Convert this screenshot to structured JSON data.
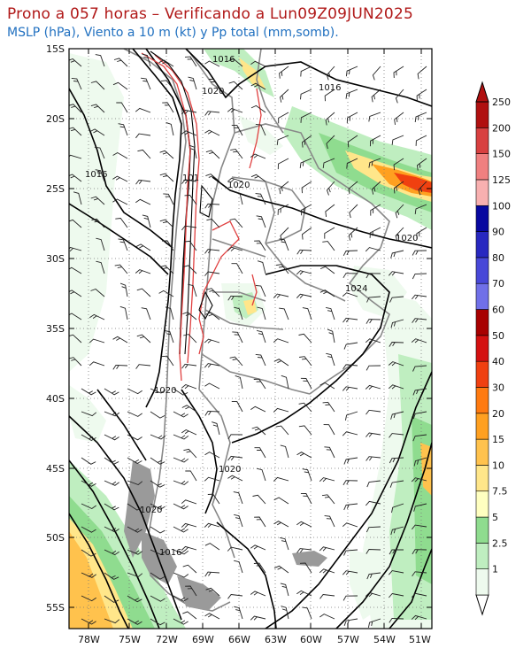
{
  "header": {
    "title": "Prono a 057 horas – Verificando a Lun09Z09JUN2025",
    "subtitle": "MSLP (hPa), Viento a 10 m (kt) y Pp total (mm,somb)."
  },
  "axes": {
    "lat_labels": [
      "15S",
      "20S",
      "25S",
      "30S",
      "35S",
      "40S",
      "45S",
      "50S",
      "55S"
    ],
    "lon_labels": [
      "78W",
      "75W",
      "72W",
      "69W",
      "66W",
      "63W",
      "60W",
      "57W",
      "54W",
      "51W"
    ]
  },
  "isobar_labels": [
    "1016",
    "1016",
    "1020",
    "1016",
    "101",
    "1020",
    "1020",
    "1024",
    "1020",
    "1020",
    "1020",
    "1016"
  ],
  "colorbar": {
    "labels": [
      "1",
      "2.5",
      "5",
      "7.5",
      "10",
      "15",
      "20",
      "30",
      "40",
      "50",
      "60",
      "70",
      "80",
      "90",
      "100",
      "125",
      "150",
      "200",
      "250"
    ],
    "colors": [
      "#eefaee",
      "#bfeec0",
      "#8fdc8f",
      "#ffffc0",
      "#ffe68a",
      "#ffc24d",
      "#ffa020",
      "#ff7a10",
      "#f04010",
      "#d41010",
      "#a80000",
      "#7070e8",
      "#4848d8",
      "#2828c0",
      "#0808a0",
      "#f8b0b0",
      "#f08080",
      "#d84040",
      "#b01010"
    ]
  },
  "colors": {
    "title": "#b01818",
    "subtitle": "#2070c0",
    "borders": "#888888",
    "isobars": "#000000",
    "terrain_contour": "#e04040"
  }
}
